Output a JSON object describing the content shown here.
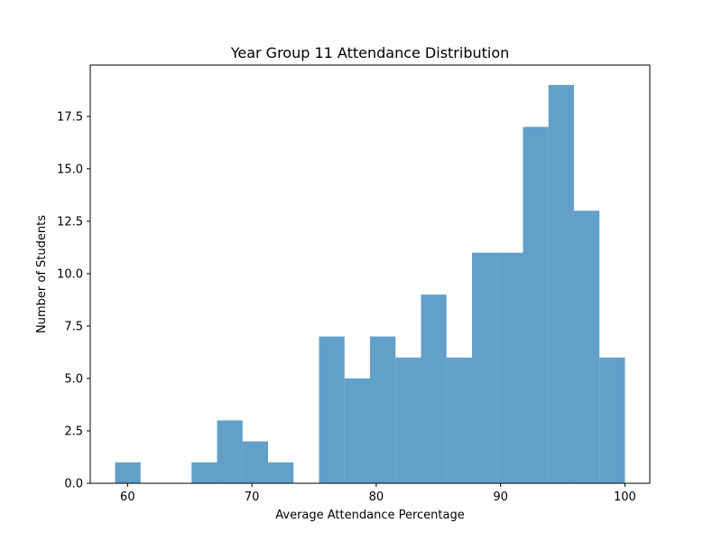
{
  "chart_data": {
    "type": "bar",
    "subtype": "histogram",
    "title": "Year Group 11 Attendance Distribution",
    "xlabel": "Average Attendance Percentage",
    "ylabel": "Number of Students",
    "bar_color": "#1f77b4",
    "bar_opacity": 0.7,
    "xlim": [
      57,
      102
    ],
    "ylim": [
      0,
      19.95
    ],
    "xticks": [
      60,
      70,
      80,
      90,
      100
    ],
    "yticks": [
      0.0,
      2.5,
      5.0,
      7.5,
      10.0,
      12.5,
      15.0,
      17.5
    ],
    "xtick_labels": [
      "60",
      "70",
      "80",
      "90",
      "100"
    ],
    "ytick_labels": [
      "0.0",
      "2.5",
      "5.0",
      "7.5",
      "10.0",
      "12.5",
      "15.0",
      "17.5"
    ],
    "grid": false,
    "bins": [
      {
        "x0": 59.0,
        "x1": 61.05,
        "count": 1
      },
      {
        "x0": 61.05,
        "x1": 63.1,
        "count": 0
      },
      {
        "x0": 63.1,
        "x1": 65.15,
        "count": 0
      },
      {
        "x0": 65.15,
        "x1": 67.2,
        "count": 1
      },
      {
        "x0": 67.2,
        "x1": 69.25,
        "count": 3
      },
      {
        "x0": 69.25,
        "x1": 71.3,
        "count": 2
      },
      {
        "x0": 71.3,
        "x1": 73.35,
        "count": 1
      },
      {
        "x0": 73.35,
        "x1": 75.4,
        "count": 0
      },
      {
        "x0": 75.4,
        "x1": 77.45,
        "count": 7
      },
      {
        "x0": 77.45,
        "x1": 79.5,
        "count": 5
      },
      {
        "x0": 79.5,
        "x1": 81.55,
        "count": 7
      },
      {
        "x0": 81.55,
        "x1": 83.6,
        "count": 6
      },
      {
        "x0": 83.6,
        "x1": 85.65,
        "count": 9
      },
      {
        "x0": 85.65,
        "x1": 87.7,
        "count": 6
      },
      {
        "x0": 87.7,
        "x1": 89.75,
        "count": 11
      },
      {
        "x0": 89.75,
        "x1": 91.8,
        "count": 11
      },
      {
        "x0": 91.8,
        "x1": 93.85,
        "count": 17
      },
      {
        "x0": 93.85,
        "x1": 95.9,
        "count": 19
      },
      {
        "x0": 95.9,
        "x1": 97.95,
        "count": 13
      },
      {
        "x0": 97.95,
        "x1": 100.0,
        "count": 6
      }
    ]
  }
}
